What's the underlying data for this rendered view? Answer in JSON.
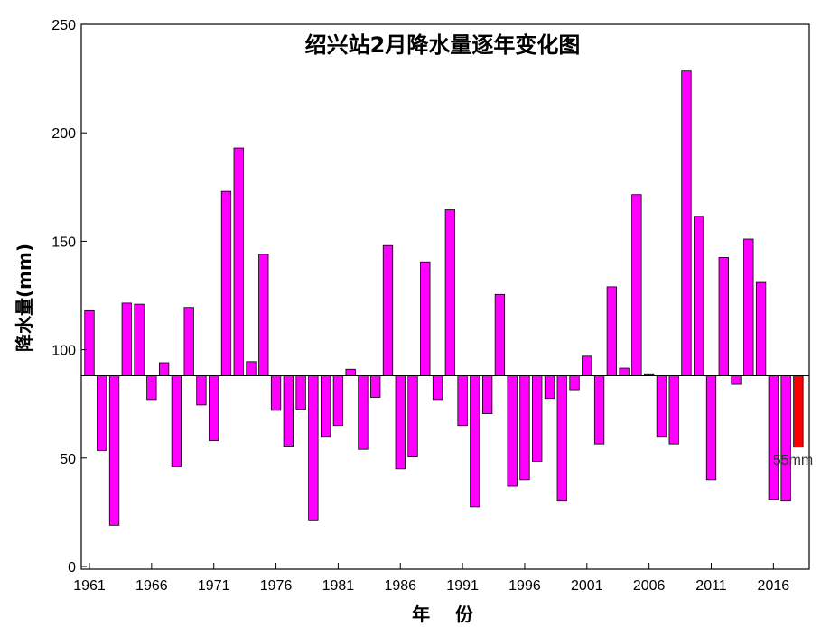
{
  "chart_data": {
    "type": "bar",
    "title": "绍兴站2月降水量逐年变化图",
    "xlabel": "年    份",
    "ylabel": "降水量(mm)",
    "ylim": [
      0,
      250
    ],
    "yticks": [
      0,
      50,
      100,
      150,
      200,
      250
    ],
    "xticks": [
      1961,
      1966,
      1971,
      1976,
      1981,
      1986,
      1991,
      1996,
      2001,
      2006,
      2011,
      2016
    ],
    "baseline": 88,
    "grid": false,
    "bar_color": "#FF00FF",
    "highlight_color": "#FF0000",
    "highlight_year": 2018,
    "annotation": "55mm",
    "years": [
      1961,
      1962,
      1963,
      1964,
      1965,
      1966,
      1967,
      1968,
      1969,
      1970,
      1971,
      1972,
      1973,
      1974,
      1975,
      1976,
      1977,
      1978,
      1979,
      1980,
      1981,
      1982,
      1983,
      1984,
      1985,
      1986,
      1987,
      1988,
      1989,
      1990,
      1991,
      1992,
      1993,
      1994,
      1995,
      1996,
      1997,
      1998,
      1999,
      2000,
      2001,
      2002,
      2003,
      2004,
      2005,
      2006,
      2007,
      2008,
      2009,
      2010,
      2011,
      2012,
      2013,
      2014,
      2015,
      2016,
      2017,
      2018
    ],
    "values": [
      118,
      53.5,
      19,
      121.5,
      121,
      77,
      94,
      46,
      119.5,
      74.5,
      58,
      173,
      193,
      94.5,
      144,
      72,
      55.5,
      72.5,
      21.5,
      60,
      65,
      91,
      54,
      78,
      148,
      45,
      50.5,
      140.5,
      77,
      164.5,
      65,
      27.5,
      70.5,
      125.5,
      37,
      40,
      48.5,
      77.5,
      30.5,
      81.5,
      97,
      56.5,
      129,
      91.5,
      171.5,
      88.5,
      60,
      56.5,
      228.5,
      161.5,
      40,
      142.5,
      84,
      151,
      131,
      31,
      30.5,
      55
    ]
  }
}
